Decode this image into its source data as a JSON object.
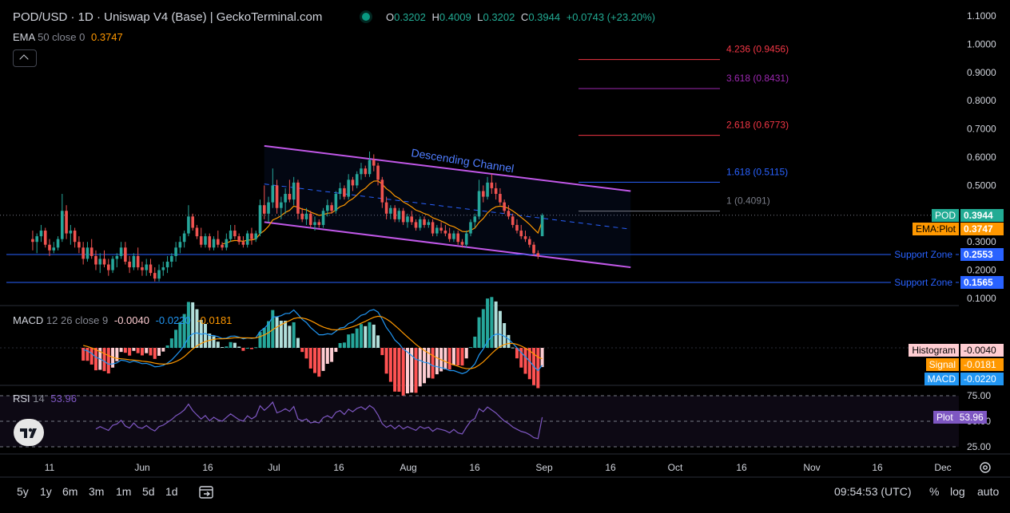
{
  "header": {
    "title": "POD/USD · 1D · Uniswap V4 (Base) | GeckoTerminal.com",
    "ohlc": [
      {
        "k": "O",
        "v": "0.3202"
      },
      {
        "k": "H",
        "v": "0.4009"
      },
      {
        "k": "L",
        "v": "0.3202"
      },
      {
        "k": "C",
        "v": "0.3944"
      }
    ],
    "change": "+0.0743 (+23.20%)"
  },
  "ema_legend": {
    "name": "EMA",
    "params": "50 close 0",
    "value": "0.3747"
  },
  "collapse_icon": "chevron-up-icon",
  "macd_legend": {
    "name": "MACD",
    "params": "12 26 close 9",
    "hist": "-0.0040",
    "macd": "-0.0220",
    "signal": "-0.0181"
  },
  "rsi_legend": {
    "name": "RSI",
    "params": "14",
    "value": "53.96"
  },
  "price_tags": [
    {
      "label": "POD",
      "value": "0.3944",
      "color": "#22ab94"
    },
    {
      "label": "EMA:Plot",
      "value": "0.3747",
      "color": "#ff9800"
    },
    {
      "label": "Support Zone",
      "value": "0.2553",
      "color": "#2962ff"
    },
    {
      "label": "Support Zone",
      "value": "0.1565",
      "color": "#2962ff"
    }
  ],
  "macd_tags": [
    {
      "label": "Histogram",
      "value": "-0.0040",
      "color": "#ffcdd2"
    },
    {
      "label": "Signal",
      "value": "-0.0181",
      "color": "#ff9800"
    },
    {
      "label": "MACD",
      "value": "-0.0220",
      "color": "#2196f3"
    }
  ],
  "rsi_tag": {
    "label": "Plot",
    "value": "53.96",
    "color": "#7e57c2"
  },
  "price_axis_labels": [
    "1.1000",
    "1.0000",
    "0.9000",
    "0.8000",
    "0.7000",
    "0.6000",
    "0.5000",
    "0.4000",
    "0.3000",
    "0.2000",
    "0.1000"
  ],
  "rsi_axis_labels": [
    "75.00",
    "50.00",
    "25.00"
  ],
  "time_axis_labels": [
    "11",
    "Jun",
    "16",
    "Jul",
    "16",
    "Aug",
    "16",
    "Sep",
    "16",
    "Oct",
    "16",
    "Nov",
    "16",
    "Dec"
  ],
  "fib_levels": [
    {
      "ratio": "4.236",
      "price": 0.9456,
      "label": "4.236 (0.9456)",
      "color": "#f23645"
    },
    {
      "ratio": "3.618",
      "price": 0.8431,
      "label": "3.618 (0.8431)",
      "color": "#9c27b0"
    },
    {
      "ratio": "2.618",
      "price": 0.6773,
      "label": "2.618 (0.6773)",
      "color": "#f23645"
    },
    {
      "ratio": "1.618",
      "price": 0.5115,
      "label": "1.618 (0.5115)",
      "color": "#2962ff"
    },
    {
      "ratio": "1",
      "price": 0.4091,
      "label": "1 (0.4091)",
      "color": "#787b86"
    }
  ],
  "channel_label": "Descending Channel",
  "bottom_bar": {
    "timeframes": [
      "5y",
      "1y",
      "6m",
      "3m",
      "1m",
      "5d",
      "1d"
    ],
    "clock": "09:54:53 (UTC)",
    "options": [
      "%",
      "log",
      "auto"
    ],
    "compare_icon": "calendar-range-icon",
    "settings_icon": "gear-icon",
    "logo": "tradingview-logo"
  },
  "chart_data": {
    "type": "candlestick",
    "symbol": "POD/USD",
    "interval": "1D",
    "exchange": "Uniswap V4 (Base)",
    "ylim": [
      0.07,
      1.13
    ],
    "last_close": 0.3944,
    "ema50_last": 0.3747,
    "support_levels": [
      0.2553,
      0.1565
    ],
    "channel": {
      "upper": [
        {
          "date": "2025-07-01",
          "price": 0.64
        },
        {
          "date": "2025-09-26",
          "price": 0.48
        }
      ],
      "lower": [
        {
          "date": "2025-07-01",
          "price": 0.37
        },
        {
          "date": "2025-09-26",
          "price": 0.21
        }
      ],
      "mid": [
        {
          "date": "2025-07-01",
          "price": 0.505
        },
        {
          "date": "2025-09-26",
          "price": 0.345
        }
      ]
    },
    "candles_approx": [
      {
        "date": "2025-05-07",
        "o": 0.31,
        "h": 0.34,
        "l": 0.27,
        "c": 0.3
      },
      {
        "date": "2025-05-08",
        "o": 0.3,
        "h": 0.33,
        "l": 0.26,
        "c": 0.32
      },
      {
        "date": "2025-05-09",
        "o": 0.32,
        "h": 0.36,
        "l": 0.3,
        "c": 0.34
      },
      {
        "date": "2025-05-10",
        "o": 0.34,
        "h": 0.35,
        "l": 0.28,
        "c": 0.29
      },
      {
        "date": "2025-05-11",
        "o": 0.29,
        "h": 0.31,
        "l": 0.25,
        "c": 0.27
      },
      {
        "date": "2025-05-12",
        "o": 0.27,
        "h": 0.3,
        "l": 0.26,
        "c": 0.28
      },
      {
        "date": "2025-05-13",
        "o": 0.28,
        "h": 0.32,
        "l": 0.27,
        "c": 0.31
      },
      {
        "date": "2025-05-14",
        "o": 0.31,
        "h": 0.47,
        "l": 0.3,
        "c": 0.41
      },
      {
        "date": "2025-05-15",
        "o": 0.41,
        "h": 0.43,
        "l": 0.31,
        "c": 0.33
      },
      {
        "date": "2025-05-16",
        "o": 0.33,
        "h": 0.36,
        "l": 0.29,
        "c": 0.34
      },
      {
        "date": "2025-05-17",
        "o": 0.34,
        "h": 0.35,
        "l": 0.28,
        "c": 0.3
      },
      {
        "date": "2025-05-18",
        "o": 0.3,
        "h": 0.32,
        "l": 0.26,
        "c": 0.28
      },
      {
        "date": "2025-05-19",
        "o": 0.28,
        "h": 0.3,
        "l": 0.22,
        "c": 0.24
      },
      {
        "date": "2025-05-20",
        "o": 0.24,
        "h": 0.3,
        "l": 0.23,
        "c": 0.28
      },
      {
        "date": "2025-05-21",
        "o": 0.28,
        "h": 0.31,
        "l": 0.24,
        "c": 0.25
      },
      {
        "date": "2025-05-22",
        "o": 0.25,
        "h": 0.27,
        "l": 0.2,
        "c": 0.22
      },
      {
        "date": "2025-05-23",
        "o": 0.22,
        "h": 0.26,
        "l": 0.19,
        "c": 0.24
      },
      {
        "date": "2025-05-24",
        "o": 0.24,
        "h": 0.27,
        "l": 0.21,
        "c": 0.22
      },
      {
        "date": "2025-05-25",
        "o": 0.22,
        "h": 0.24,
        "l": 0.18,
        "c": 0.2
      },
      {
        "date": "2025-05-26",
        "o": 0.2,
        "h": 0.25,
        "l": 0.19,
        "c": 0.24
      },
      {
        "date": "2025-05-27",
        "o": 0.24,
        "h": 0.26,
        "l": 0.21,
        "c": 0.25
      },
      {
        "date": "2025-05-28",
        "o": 0.25,
        "h": 0.3,
        "l": 0.24,
        "c": 0.28
      },
      {
        "date": "2025-05-29",
        "o": 0.28,
        "h": 0.3,
        "l": 0.22,
        "c": 0.23
      },
      {
        "date": "2025-05-30",
        "o": 0.23,
        "h": 0.25,
        "l": 0.19,
        "c": 0.21
      },
      {
        "date": "2025-05-31",
        "o": 0.21,
        "h": 0.26,
        "l": 0.2,
        "c": 0.25
      },
      {
        "date": "2025-06-01",
        "o": 0.25,
        "h": 0.28,
        "l": 0.2,
        "c": 0.21
      },
      {
        "date": "2025-06-02",
        "o": 0.21,
        "h": 0.23,
        "l": 0.18,
        "c": 0.2
      },
      {
        "date": "2025-06-03",
        "o": 0.2,
        "h": 0.24,
        "l": 0.18,
        "c": 0.22
      },
      {
        "date": "2025-06-04",
        "o": 0.22,
        "h": 0.24,
        "l": 0.18,
        "c": 0.19
      },
      {
        "date": "2025-06-05",
        "o": 0.19,
        "h": 0.21,
        "l": 0.16,
        "c": 0.17
      },
      {
        "date": "2025-06-06",
        "o": 0.17,
        "h": 0.22,
        "l": 0.16,
        "c": 0.2
      },
      {
        "date": "2025-06-07",
        "o": 0.2,
        "h": 0.23,
        "l": 0.18,
        "c": 0.21
      },
      {
        "date": "2025-06-08",
        "o": 0.21,
        "h": 0.25,
        "l": 0.19,
        "c": 0.23
      },
      {
        "date": "2025-06-09",
        "o": 0.23,
        "h": 0.26,
        "l": 0.21,
        "c": 0.25
      },
      {
        "date": "2025-06-10",
        "o": 0.25,
        "h": 0.3,
        "l": 0.23,
        "c": 0.28
      },
      {
        "date": "2025-06-11",
        "o": 0.28,
        "h": 0.32,
        "l": 0.26,
        "c": 0.3
      },
      {
        "date": "2025-06-12",
        "o": 0.3,
        "h": 0.34,
        "l": 0.28,
        "c": 0.33
      },
      {
        "date": "2025-06-13",
        "o": 0.33,
        "h": 0.43,
        "l": 0.32,
        "c": 0.39
      },
      {
        "date": "2025-06-14",
        "o": 0.39,
        "h": 0.4,
        "l": 0.34,
        "c": 0.35
      },
      {
        "date": "2025-06-15",
        "o": 0.35,
        "h": 0.36,
        "l": 0.31,
        "c": 0.32
      },
      {
        "date": "2025-06-16",
        "o": 0.32,
        "h": 0.35,
        "l": 0.28,
        "c": 0.29
      },
      {
        "date": "2025-06-17",
        "o": 0.29,
        "h": 0.33,
        "l": 0.28,
        "c": 0.32
      },
      {
        "date": "2025-06-18",
        "o": 0.32,
        "h": 0.33,
        "l": 0.27,
        "c": 0.28
      },
      {
        "date": "2025-06-19",
        "o": 0.28,
        "h": 0.32,
        "l": 0.27,
        "c": 0.31
      },
      {
        "date": "2025-06-20",
        "o": 0.31,
        "h": 0.34,
        "l": 0.28,
        "c": 0.29
      },
      {
        "date": "2025-06-21",
        "o": 0.29,
        "h": 0.3,
        "l": 0.27,
        "c": 0.28
      },
      {
        "date": "2025-06-22",
        "o": 0.28,
        "h": 0.33,
        "l": 0.27,
        "c": 0.31
      },
      {
        "date": "2025-06-23",
        "o": 0.31,
        "h": 0.36,
        "l": 0.3,
        "c": 0.34
      },
      {
        "date": "2025-06-24",
        "o": 0.34,
        "h": 0.36,
        "l": 0.31,
        "c": 0.32
      },
      {
        "date": "2025-06-25",
        "o": 0.32,
        "h": 0.33,
        "l": 0.29,
        "c": 0.3
      },
      {
        "date": "2025-06-26",
        "o": 0.3,
        "h": 0.32,
        "l": 0.28,
        "c": 0.29
      },
      {
        "date": "2025-06-27",
        "o": 0.29,
        "h": 0.34,
        "l": 0.28,
        "c": 0.33
      },
      {
        "date": "2025-06-28",
        "o": 0.33,
        "h": 0.35,
        "l": 0.29,
        "c": 0.31
      },
      {
        "date": "2025-06-29",
        "o": 0.31,
        "h": 0.34,
        "l": 0.3,
        "c": 0.33
      },
      {
        "date": "2025-06-30",
        "o": 0.33,
        "h": 0.45,
        "l": 0.32,
        "c": 0.43
      },
      {
        "date": "2025-07-01",
        "o": 0.43,
        "h": 0.5,
        "l": 0.38,
        "c": 0.4
      },
      {
        "date": "2025-07-02",
        "o": 0.4,
        "h": 0.46,
        "l": 0.37,
        "c": 0.44
      },
      {
        "date": "2025-07-03",
        "o": 0.44,
        "h": 0.56,
        "l": 0.42,
        "c": 0.5
      },
      {
        "date": "2025-07-04",
        "o": 0.5,
        "h": 0.52,
        "l": 0.4,
        "c": 0.42
      },
      {
        "date": "2025-07-05",
        "o": 0.42,
        "h": 0.46,
        "l": 0.38,
        "c": 0.44
      },
      {
        "date": "2025-07-06",
        "o": 0.44,
        "h": 0.49,
        "l": 0.4,
        "c": 0.47
      },
      {
        "date": "2025-07-07",
        "o": 0.47,
        "h": 0.52,
        "l": 0.44,
        "c": 0.45
      },
      {
        "date": "2025-07-08",
        "o": 0.45,
        "h": 0.53,
        "l": 0.43,
        "c": 0.51
      },
      {
        "date": "2025-07-09",
        "o": 0.51,
        "h": 0.52,
        "l": 0.38,
        "c": 0.4
      },
      {
        "date": "2025-07-10",
        "o": 0.4,
        "h": 0.42,
        "l": 0.37,
        "c": 0.38
      },
      {
        "date": "2025-07-11",
        "o": 0.38,
        "h": 0.42,
        "l": 0.36,
        "c": 0.4
      },
      {
        "date": "2025-07-12",
        "o": 0.4,
        "h": 0.41,
        "l": 0.35,
        "c": 0.36
      },
      {
        "date": "2025-07-13",
        "o": 0.36,
        "h": 0.39,
        "l": 0.34,
        "c": 0.37
      },
      {
        "date": "2025-07-14",
        "o": 0.37,
        "h": 0.38,
        "l": 0.35,
        "c": 0.36
      },
      {
        "date": "2025-07-15",
        "o": 0.36,
        "h": 0.42,
        "l": 0.35,
        "c": 0.41
      },
      {
        "date": "2025-07-16",
        "o": 0.41,
        "h": 0.45,
        "l": 0.39,
        "c": 0.43
      },
      {
        "date": "2025-07-17",
        "o": 0.43,
        "h": 0.44,
        "l": 0.4,
        "c": 0.41
      },
      {
        "date": "2025-07-18",
        "o": 0.41,
        "h": 0.48,
        "l": 0.4,
        "c": 0.47
      },
      {
        "date": "2025-07-19",
        "o": 0.47,
        "h": 0.51,
        "l": 0.45,
        "c": 0.49
      },
      {
        "date": "2025-07-20",
        "o": 0.49,
        "h": 0.5,
        "l": 0.45,
        "c": 0.46
      },
      {
        "date": "2025-07-21",
        "o": 0.46,
        "h": 0.54,
        "l": 0.45,
        "c": 0.52
      },
      {
        "date": "2025-07-22",
        "o": 0.52,
        "h": 0.53,
        "l": 0.48,
        "c": 0.5
      },
      {
        "date": "2025-07-23",
        "o": 0.5,
        "h": 0.55,
        "l": 0.49,
        "c": 0.54
      },
      {
        "date": "2025-07-24",
        "o": 0.54,
        "h": 0.58,
        "l": 0.52,
        "c": 0.56
      },
      {
        "date": "2025-07-25",
        "o": 0.56,
        "h": 0.57,
        "l": 0.53,
        "c": 0.54
      },
      {
        "date": "2025-07-26",
        "o": 0.54,
        "h": 0.62,
        "l": 0.53,
        "c": 0.59
      },
      {
        "date": "2025-07-27",
        "o": 0.59,
        "h": 0.61,
        "l": 0.55,
        "c": 0.57
      },
      {
        "date": "2025-07-28",
        "o": 0.57,
        "h": 0.58,
        "l": 0.5,
        "c": 0.52
      },
      {
        "date": "2025-07-29",
        "o": 0.52,
        "h": 0.53,
        "l": 0.42,
        "c": 0.44
      },
      {
        "date": "2025-07-30",
        "o": 0.44,
        "h": 0.46,
        "l": 0.38,
        "c": 0.4
      },
      {
        "date": "2025-07-31",
        "o": 0.4,
        "h": 0.43,
        "l": 0.38,
        "c": 0.42
      },
      {
        "date": "2025-08-01",
        "o": 0.42,
        "h": 0.43,
        "l": 0.37,
        "c": 0.38
      },
      {
        "date": "2025-08-02",
        "o": 0.38,
        "h": 0.42,
        "l": 0.37,
        "c": 0.41
      },
      {
        "date": "2025-08-03",
        "o": 0.41,
        "h": 0.42,
        "l": 0.36,
        "c": 0.37
      },
      {
        "date": "2025-08-04",
        "o": 0.37,
        "h": 0.4,
        "l": 0.35,
        "c": 0.39
      },
      {
        "date": "2025-08-05",
        "o": 0.39,
        "h": 0.41,
        "l": 0.36,
        "c": 0.37
      },
      {
        "date": "2025-08-06",
        "o": 0.37,
        "h": 0.38,
        "l": 0.34,
        "c": 0.35
      },
      {
        "date": "2025-08-07",
        "o": 0.35,
        "h": 0.39,
        "l": 0.34,
        "c": 0.38
      },
      {
        "date": "2025-08-08",
        "o": 0.38,
        "h": 0.39,
        "l": 0.35,
        "c": 0.36
      },
      {
        "date": "2025-08-09",
        "o": 0.36,
        "h": 0.38,
        "l": 0.35,
        "c": 0.37
      },
      {
        "date": "2025-08-10",
        "o": 0.37,
        "h": 0.38,
        "l": 0.32,
        "c": 0.33
      },
      {
        "date": "2025-08-11",
        "o": 0.33,
        "h": 0.36,
        "l": 0.32,
        "c": 0.35
      },
      {
        "date": "2025-08-12",
        "o": 0.35,
        "h": 0.37,
        "l": 0.33,
        "c": 0.34
      },
      {
        "date": "2025-08-13",
        "o": 0.34,
        "h": 0.36,
        "l": 0.32,
        "c": 0.33
      },
      {
        "date": "2025-08-14",
        "o": 0.33,
        "h": 0.35,
        "l": 0.3,
        "c": 0.31
      },
      {
        "date": "2025-08-15",
        "o": 0.31,
        "h": 0.34,
        "l": 0.3,
        "c": 0.33
      },
      {
        "date": "2025-08-16",
        "o": 0.33,
        "h": 0.34,
        "l": 0.29,
        "c": 0.3
      },
      {
        "date": "2025-08-17",
        "o": 0.3,
        "h": 0.31,
        "l": 0.28,
        "c": 0.29
      },
      {
        "date": "2025-08-18",
        "o": 0.29,
        "h": 0.34,
        "l": 0.28,
        "c": 0.33
      },
      {
        "date": "2025-08-19",
        "o": 0.33,
        "h": 0.38,
        "l": 0.32,
        "c": 0.37
      },
      {
        "date": "2025-08-20",
        "o": 0.37,
        "h": 0.4,
        "l": 0.35,
        "c": 0.39
      },
      {
        "date": "2025-08-21",
        "o": 0.39,
        "h": 0.52,
        "l": 0.38,
        "c": 0.48
      },
      {
        "date": "2025-08-22",
        "o": 0.48,
        "h": 0.5,
        "l": 0.44,
        "c": 0.46
      },
      {
        "date": "2025-08-23",
        "o": 0.46,
        "h": 0.53,
        "l": 0.45,
        "c": 0.51
      },
      {
        "date": "2025-08-24",
        "o": 0.51,
        "h": 0.54,
        "l": 0.47,
        "c": 0.49
      },
      {
        "date": "2025-08-25",
        "o": 0.49,
        "h": 0.51,
        "l": 0.45,
        "c": 0.47
      },
      {
        "date": "2025-08-26",
        "o": 0.47,
        "h": 0.49,
        "l": 0.43,
        "c": 0.44
      },
      {
        "date": "2025-08-27",
        "o": 0.44,
        "h": 0.45,
        "l": 0.4,
        "c": 0.41
      },
      {
        "date": "2025-08-28",
        "o": 0.41,
        "h": 0.43,
        "l": 0.38,
        "c": 0.39
      },
      {
        "date": "2025-08-29",
        "o": 0.39,
        "h": 0.4,
        "l": 0.35,
        "c": 0.36
      },
      {
        "date": "2025-08-30",
        "o": 0.36,
        "h": 0.38,
        "l": 0.33,
        "c": 0.34
      },
      {
        "date": "2025-08-31",
        "o": 0.34,
        "h": 0.36,
        "l": 0.31,
        "c": 0.32
      },
      {
        "date": "2025-09-01",
        "o": 0.32,
        "h": 0.34,
        "l": 0.3,
        "c": 0.31
      },
      {
        "date": "2025-09-02",
        "o": 0.31,
        "h": 0.32,
        "l": 0.28,
        "c": 0.29
      },
      {
        "date": "2025-09-03",
        "o": 0.29,
        "h": 0.3,
        "l": 0.25,
        "c": 0.26
      },
      {
        "date": "2025-09-04",
        "o": 0.26,
        "h": 0.27,
        "l": 0.24,
        "c": 0.25
      },
      {
        "date": "2025-09-05",
        "o": 0.3202,
        "h": 0.4009,
        "l": 0.3202,
        "c": 0.3944
      }
    ],
    "macd": {
      "params": "12 26 close 9",
      "macd_last": -0.022,
      "signal_last": -0.0181,
      "hist_last": -0.004
    },
    "rsi": {
      "period": 14,
      "last": 53.96,
      "bands": [
        75,
        50,
        25
      ]
    }
  }
}
